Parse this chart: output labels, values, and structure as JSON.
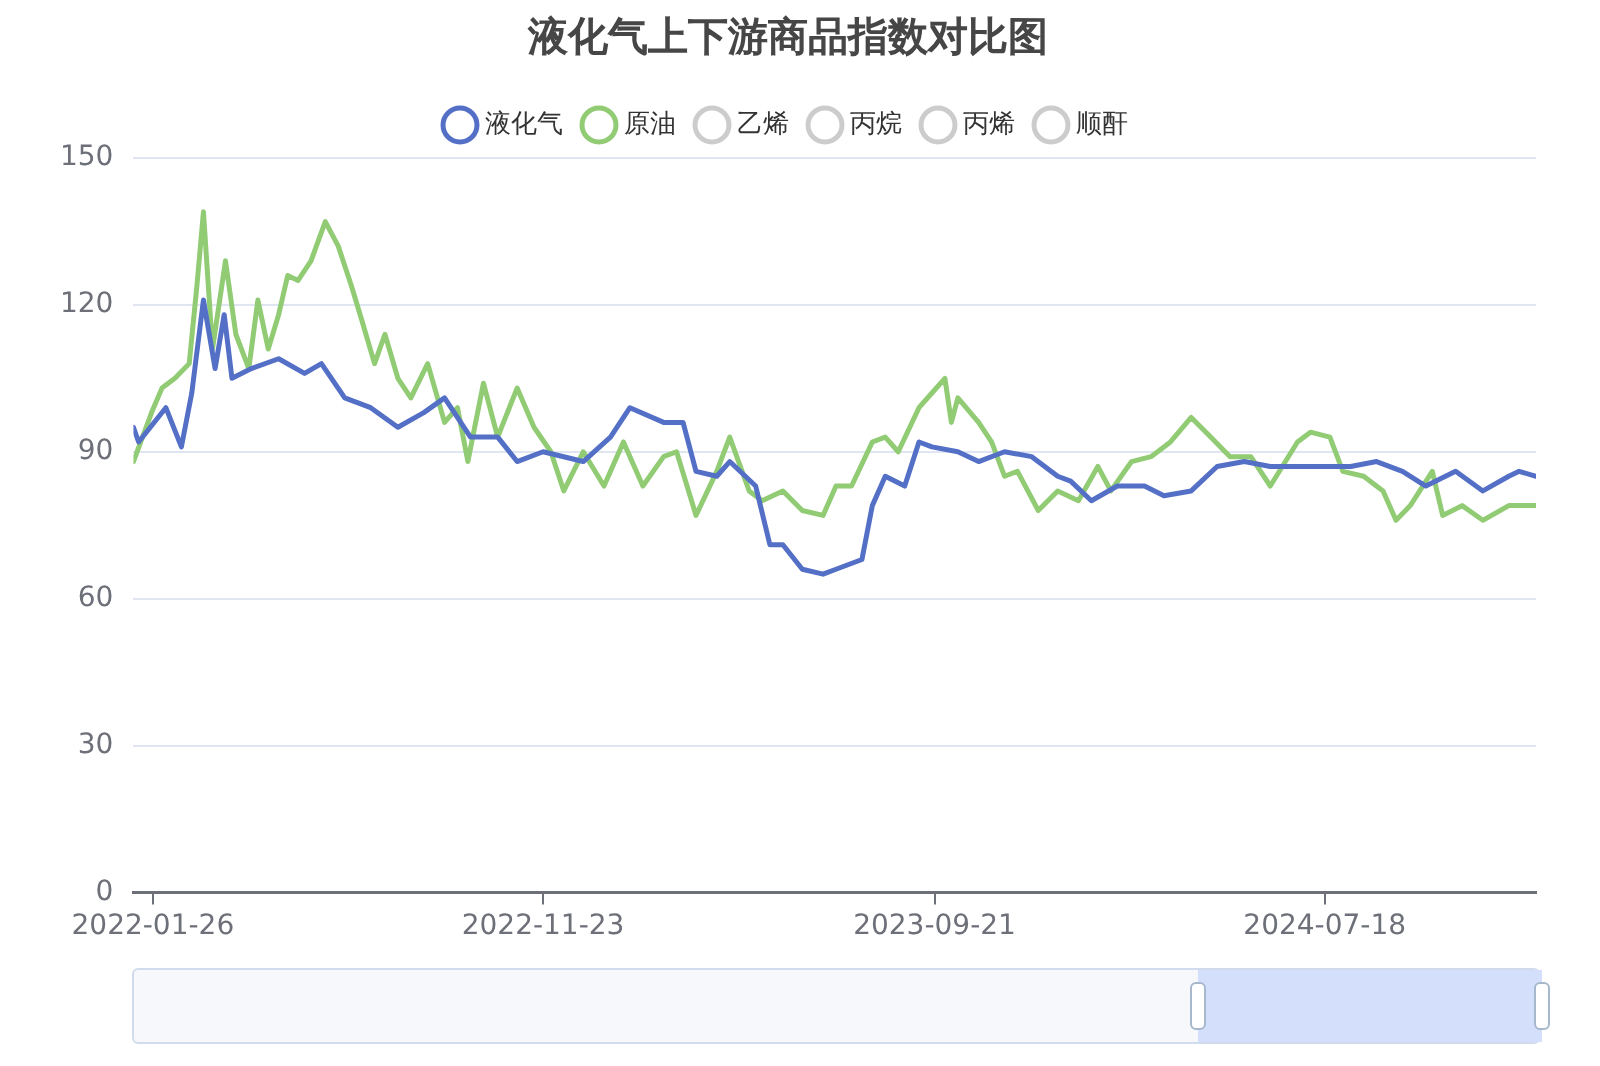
{
  "chart_data": {
    "type": "line",
    "title": "液化气上下游商品指数对比图",
    "legend": "top",
    "grid": "y",
    "marker": "none",
    "line_style": "solid",
    "xlim": [
      "2022-01-11",
      "2024-12-28"
    ],
    "xticks": [
      "2022-01-26",
      "2022-11-23",
      "2023-09-21",
      "2024-07-18"
    ],
    "ylim": [
      0,
      150
    ],
    "yticks": [
      0,
      30,
      60,
      90,
      120,
      150
    ],
    "series": [
      {
        "name": "液化气",
        "color": "#5470c6",
        "x": [
          "2022-01-11",
          "2022-01-15",
          "2022-02-05",
          "2022-02-17",
          "2022-02-25",
          "2022-03-06",
          "2022-03-15",
          "2022-03-22",
          "2022-03-28",
          "2022-04-12",
          "2022-05-03",
          "2022-05-23",
          "2022-06-05",
          "2022-06-23",
          "2022-07-13",
          "2022-08-03",
          "2022-08-23",
          "2022-09-08",
          "2022-09-28",
          "2022-10-19",
          "2022-11-03",
          "2022-11-23",
          "2022-12-24",
          "2023-01-14",
          "2023-01-29",
          "2023-02-24",
          "2023-03-11",
          "2023-03-21",
          "2023-04-06",
          "2023-04-16",
          "2023-05-06",
          "2023-05-17",
          "2023-05-27",
          "2023-06-11",
          "2023-06-27",
          "2023-07-07",
          "2023-07-27",
          "2023-08-04",
          "2023-08-14",
          "2023-08-29",
          "2023-09-09",
          "2023-09-19",
          "2023-10-09",
          "2023-10-25",
          "2023-11-14",
          "2023-12-05",
          "2023-12-25",
          "2024-01-04",
          "2024-01-20",
          "2024-02-09",
          "2024-03-01",
          "2024-03-16",
          "2024-04-06",
          "2024-04-26",
          "2024-05-17",
          "2024-06-06",
          "2024-06-27",
          "2024-07-17",
          "2024-08-07",
          "2024-08-27",
          "2024-09-16",
          "2024-10-04",
          "2024-10-27",
          "2024-11-17",
          "2024-12-07",
          "2024-12-15",
          "2024-12-28"
        ],
        "values": [
          95,
          92,
          99,
          91,
          102,
          121,
          107,
          118,
          105,
          107,
          109,
          106,
          108,
          101,
          99,
          95,
          98,
          101,
          93,
          93,
          88,
          90,
          88,
          93,
          99,
          96,
          96,
          86,
          85,
          88,
          83,
          71,
          71,
          66,
          65,
          66,
          68,
          79,
          85,
          83,
          92,
          91,
          90,
          88,
          90,
          89,
          85,
          84,
          80,
          83,
          83,
          81,
          82,
          87,
          88,
          87,
          87,
          87,
          87,
          88,
          86,
          83,
          86,
          82,
          85,
          86,
          85
        ]
      },
      {
        "name": "原油",
        "color": "#91cc75",
        "x": [
          "2022-01-11",
          "2022-01-25",
          "2022-02-02",
          "2022-02-12",
          "2022-02-23",
          "2022-03-01",
          "2022-03-06",
          "2022-03-13",
          "2022-03-23",
          "2022-03-31",
          "2022-04-10",
          "2022-04-17",
          "2022-04-25",
          "2022-05-03",
          "2022-05-10",
          "2022-05-18",
          "2022-05-28",
          "2022-06-08",
          "2022-06-18",
          "2022-06-28",
          "2022-07-06",
          "2022-07-16",
          "2022-07-24",
          "2022-08-03",
          "2022-08-13",
          "2022-08-26",
          "2022-09-08",
          "2022-09-18",
          "2022-09-26",
          "2022-10-08",
          "2022-10-19",
          "2022-11-03",
          "2022-11-16",
          "2022-11-29",
          "2022-12-09",
          "2022-12-24",
          "2023-01-09",
          "2023-01-24",
          "2023-02-08",
          "2023-02-24",
          "2023-03-06",
          "2023-03-21",
          "2023-04-06",
          "2023-04-16",
          "2023-05-01",
          "2023-05-11",
          "2023-05-27",
          "2023-06-11",
          "2023-06-27",
          "2023-07-07",
          "2023-07-19",
          "2023-08-04",
          "2023-08-14",
          "2023-08-24",
          "2023-09-09",
          "2023-09-19",
          "2023-09-29",
          "2023-10-04",
          "2023-10-09",
          "2023-10-25",
          "2023-11-04",
          "2023-11-14",
          "2023-11-24",
          "2023-12-10",
          "2023-12-25",
          "2024-01-10",
          "2024-01-25",
          "2024-02-04",
          "2024-02-20",
          "2024-03-06",
          "2024-03-21",
          "2024-04-06",
          "2024-04-21",
          "2024-05-06",
          "2024-05-22",
          "2024-06-06",
          "2024-06-27",
          "2024-07-07",
          "2024-07-22",
          "2024-08-01",
          "2024-08-17",
          "2024-09-01",
          "2024-09-11",
          "2024-09-22",
          "2024-10-09",
          "2024-10-17",
          "2024-11-01",
          "2024-11-17",
          "2024-12-07",
          "2024-12-28"
        ],
        "values": [
          88,
          98,
          103,
          105,
          108,
          124,
          139,
          111,
          129,
          114,
          107,
          121,
          111,
          118,
          126,
          125,
          129,
          137,
          132,
          124,
          117,
          108,
          114,
          105,
          101,
          108,
          96,
          99,
          88,
          104,
          93,
          103,
          95,
          90,
          82,
          90,
          83,
          92,
          83,
          89,
          90,
          77,
          86,
          93,
          82,
          80,
          82,
          78,
          77,
          83,
          83,
          92,
          93,
          90,
          99,
          102,
          105,
          96,
          101,
          96,
          92,
          85,
          86,
          78,
          82,
          80,
          87,
          82,
          88,
          89,
          92,
          97,
          93,
          89,
          89,
          83,
          92,
          94,
          93,
          86,
          85,
          82,
          76,
          79,
          86,
          77,
          79,
          76,
          79,
          79
        ]
      },
      {
        "name": "乙烯",
        "color": "#cccccc"
      },
      {
        "name": "丙烷",
        "color": "#cccccc"
      },
      {
        "name": "丙烯",
        "color": "#cccccc"
      },
      {
        "name": "顺酐",
        "color": "#cccccc"
      }
    ]
  }
}
